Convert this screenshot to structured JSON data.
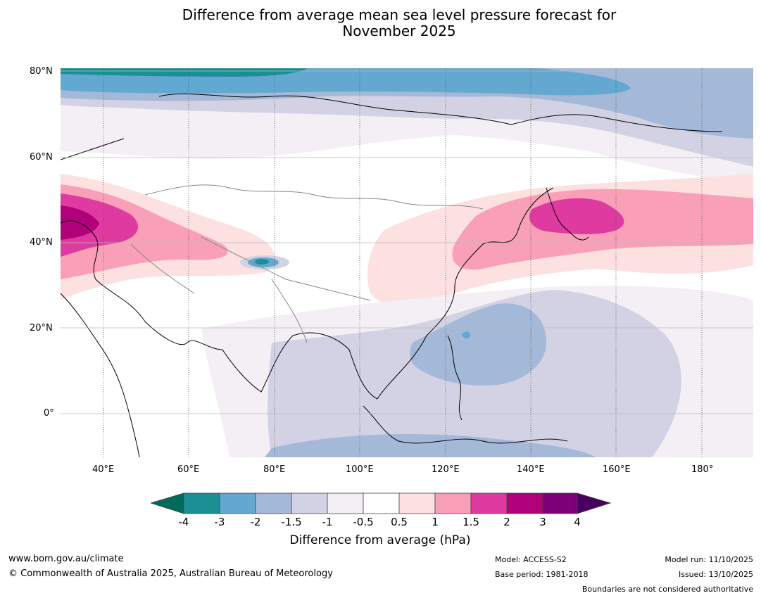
{
  "title": {
    "line1": "Difference from average mean sea level pressure forecast for",
    "line2": "November 2025"
  },
  "map": {
    "lat_labels": [
      "80°N",
      "60°N",
      "40°N",
      "20°N",
      "0°"
    ],
    "lon_labels": [
      "40°E",
      "60°E",
      "80°E",
      "100°E",
      "120°E",
      "140°E",
      "160°E",
      "180°"
    ],
    "lon_range": [
      30,
      192
    ],
    "lat_range": [
      -10,
      81
    ]
  },
  "colorbar": {
    "tick_labels": [
      "-4",
      "-3",
      "-2",
      "-1.5",
      "-1",
      "-0.5",
      "0.5",
      "1",
      "1.5",
      "2",
      "3",
      "4"
    ],
    "colors": [
      "#006b5c",
      "#1a9096",
      "#63a8d0",
      "#a4b8d8",
      "#d2d2e4",
      "#f4eef5",
      "#ffffff",
      "#fde0e0",
      "#f9a0b8",
      "#de3aa0",
      "#b0007a",
      "#7e0078",
      "#4a0060"
    ],
    "label": "Difference from average (hPa)"
  },
  "footer": {
    "url": "www.bom.gov.au/climate",
    "copyright": "© Commonwealth of Australia 2025, Australian Bureau of Meteorology",
    "model": "Model: ACCESS-S2",
    "base_period": "Base period: 1981-2018",
    "model_run": "Model run: 11/10/2025",
    "issued": "Issued: 13/10/2025",
    "disclaimer": "Boundaries are not considered authoritative"
  }
}
